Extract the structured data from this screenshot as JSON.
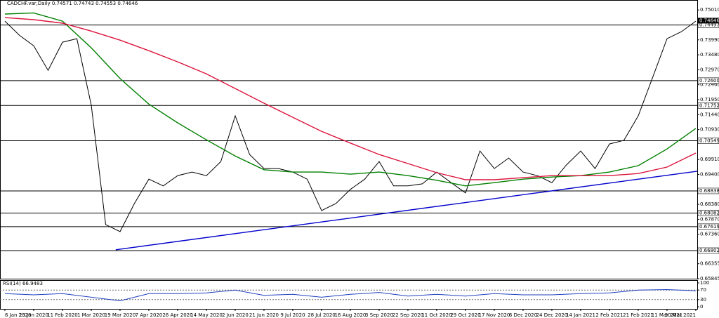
{
  "chart_data": [
    {
      "type": "line",
      "title": "CADCHF.var,Daily  0.74571 0.74743 0.74553 0.74646",
      "xlim": [
        -0.17,
        24.05
      ],
      "ylim": [
        0.6582,
        0.7535
      ],
      "xticks": [
        {
          "value": 0,
          "label": "6 Jan 2020"
        },
        {
          "value": 1,
          "label": "23 Jan 2020"
        },
        {
          "value": 2,
          "label": "11 Feb 2020"
        },
        {
          "value": 3,
          "label": "1 Mar 2020"
        },
        {
          "value": 4,
          "label": "19 Mar 2020"
        },
        {
          "value": 5,
          "label": "7 Apr 2020"
        },
        {
          "value": 6,
          "label": "26 Apr 2020"
        },
        {
          "value": 7,
          "label": "14 May 2020"
        },
        {
          "value": 8,
          "label": "2 Jun 2020"
        },
        {
          "value": 9,
          "label": "21 Jun 2020"
        },
        {
          "value": 10,
          "label": "9 Jul 2020"
        },
        {
          "value": 11,
          "label": "28 Jul 2020"
        },
        {
          "value": 12,
          "label": "16 Aug 2020"
        },
        {
          "value": 13,
          "label": "3 Sep 2020"
        },
        {
          "value": 14,
          "label": "22 Sep 2020"
        },
        {
          "value": 15,
          "label": "11 Oct 2020"
        },
        {
          "value": 16,
          "label": "29 Oct 2020"
        },
        {
          "value": 17,
          "label": "17 Nov 2020"
        },
        {
          "value": 18,
          "label": "6 Dec 2020"
        },
        {
          "value": 19,
          "label": "24 Dec 2020"
        },
        {
          "value": 20,
          "label": "14 Jan 2021"
        },
        {
          "value": 21,
          "label": "2 Feb 2021"
        },
        {
          "value": 22,
          "label": "21 Feb 2021"
        },
        {
          "value": 23,
          "label": "11 Mar 2021"
        },
        {
          "value": 24,
          "label": "30 Mar 2021"
        }
      ],
      "yticks": [
        {
          "value": 0.7501,
          "label": "0.75010"
        },
        {
          "value": 0.7399,
          "label": "0.73990"
        },
        {
          "value": 0.7348,
          "label": "0.73480"
        },
        {
          "value": 0.7297,
          "label": "0.72970"
        },
        {
          "value": 0.7246,
          "label": "0.72460"
        },
        {
          "value": 0.7195,
          "label": "0.71950"
        },
        {
          "value": 0.7144,
          "label": "0.71440"
        },
        {
          "value": 0.7093,
          "label": "0.70930"
        },
        {
          "value": 0.6991,
          "label": "0.69910"
        },
        {
          "value": 0.694,
          "label": "0.69400"
        },
        {
          "value": 0.6838,
          "label": "0.68380"
        },
        {
          "value": 0.6787,
          "label": "0.67870"
        },
        {
          "value": 0.6736,
          "label": "0.67360"
        },
        0.66355,
        0.65845
      ],
      "hlines": [
        {
          "value": 0.74497,
          "label": "0.74497"
        },
        {
          "value": 0.726,
          "label": "0.72600"
        },
        {
          "value": 0.71752,
          "label": "0.71752"
        },
        {
          "value": 0.70549,
          "label": "0.70549"
        },
        {
          "value": 0.68838,
          "label": "0.68838"
        },
        {
          "value": 0.68082,
          "label": "0.68082"
        },
        {
          "value": 0.67619,
          "label": "0.67619"
        },
        {
          "value": 0.66802,
          "label": "0.66802"
        }
      ],
      "last": 0.74646,
      "series": [
        {
          "color": "#000000",
          "x": [
            0,
            0.5,
            1,
            1.5,
            2,
            2.5,
            3,
            3.5,
            4,
            4.5,
            5,
            5.5,
            6,
            6.5,
            7,
            7.5,
            8,
            8.5,
            9,
            9.5,
            10,
            10.5,
            11,
            11.5,
            12,
            12.5,
            13,
            13.5,
            14,
            14.5,
            15,
            15.5,
            16,
            16.5,
            17,
            17.5,
            18,
            18.5,
            19,
            19.5,
            20,
            20.5,
            21,
            21.5,
            22,
            22.5,
            23,
            23.5,
            24
          ],
          "values": [
            0.7463,
            0.7415,
            0.7379,
            0.7295,
            0.7391,
            0.7403,
            0.7176,
            0.6769,
            0.6745,
            0.6841,
            0.6924,
            0.6901,
            0.6936,
            0.6948,
            0.6936,
            0.6984,
            0.714,
            0.7008,
            0.696,
            0.696,
            0.6948,
            0.6924,
            0.6817,
            0.6841,
            0.6889,
            0.6924,
            0.6984,
            0.6901,
            0.6901,
            0.6908,
            0.6948,
            0.6912,
            0.6877,
            0.702,
            0.696,
            0.6996,
            0.6948,
            0.6936,
            0.6912,
            0.6972,
            0.702,
            0.696,
            0.7044,
            0.7056,
            0.714,
            0.7271,
            0.7403,
            0.7427,
            0.7463
          ]
        },
        {
          "color": "#008000",
          "x": [
            0,
            1,
            2,
            3,
            4,
            5,
            6,
            7,
            8,
            9,
            10,
            11,
            12,
            13,
            14,
            15,
            16,
            17,
            18,
            19,
            20,
            21,
            22,
            23,
            24
          ],
          "values": [
            0.7487,
            0.7491,
            0.7463,
            0.7372,
            0.7267,
            0.718,
            0.7116,
            0.7058,
            0.7003,
            0.6956,
            0.6948,
            0.6948,
            0.6941,
            0.6948,
            0.6936,
            0.692,
            0.6901,
            0.6912,
            0.6924,
            0.6931,
            0.6936,
            0.6948,
            0.697,
            0.7027,
            0.7097
          ]
        },
        {
          "color": "#dc143c",
          "x": [
            0,
            1,
            2,
            3,
            4,
            5,
            6,
            7,
            8,
            9,
            10,
            11,
            12,
            13,
            14,
            15,
            16,
            17,
            18,
            19,
            20,
            21,
            22,
            23,
            24
          ],
          "values": [
            0.7475,
            0.7468,
            0.7456,
            0.7429,
            0.7398,
            0.7362,
            0.7324,
            0.7283,
            0.7233,
            0.7183,
            0.7135,
            0.7087,
            0.7047,
            0.7008,
            0.6977,
            0.6946,
            0.6922,
            0.6922,
            0.6929,
            0.6936,
            0.6936,
            0.6936,
            0.6943,
            0.6965,
            0.7013
          ]
        },
        {
          "color": "#0000cd",
          "x": [
            3.85,
            24.05
          ],
          "values": [
            0.6683,
            0.6951
          ]
        }
      ]
    },
    {
      "type": "line",
      "title": "RSI(14) 66.9483",
      "xlim": [
        -0.17,
        24.05
      ],
      "ylim": [
        -8.8,
        108.8
      ],
      "yticks": [
        0,
        30,
        70,
        100
      ],
      "levels": [
        30,
        70
      ],
      "series": [
        {
          "color": "#1e3fbf",
          "x": [
            0,
            1,
            2,
            3,
            4,
            5,
            6,
            7,
            8,
            9,
            10,
            11,
            12,
            13,
            14,
            15,
            16,
            17,
            18,
            19,
            20,
            21,
            22,
            23,
            24
          ],
          "values": [
            55,
            50,
            55,
            40,
            25,
            55,
            55,
            58,
            70,
            48,
            52,
            40,
            52,
            60,
            45,
            52,
            45,
            55,
            50,
            50,
            55,
            58,
            70,
            72,
            67
          ]
        }
      ]
    }
  ]
}
